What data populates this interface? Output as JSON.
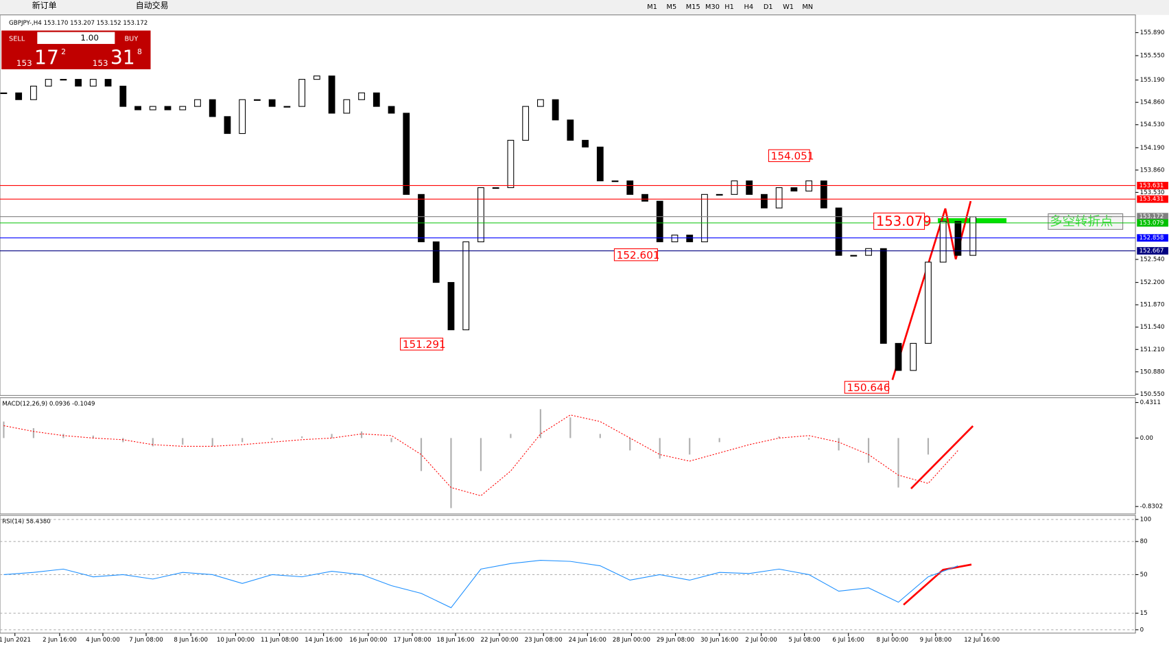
{
  "toolbar": {
    "buttons": [
      "新订单",
      "自动交易"
    ],
    "timeframes": [
      "M1",
      "M5",
      "M15",
      "M30",
      "H1",
      "H4",
      "D1",
      "W1",
      "MN"
    ]
  },
  "trade_panel": {
    "sell": "SELL",
    "lot": "1.00",
    "buy": "BUY",
    "sell_price": [
      "153",
      "17",
      "2"
    ],
    "buy_price": [
      "153",
      "31",
      "8"
    ]
  },
  "note": "多空转折点",
  "chart_data": [
    {
      "type": "candlestick",
      "title": "GBPJPY-,H4 153.170 153.207 153.152 153.172",
      "values": [
        155.0,
        154.9,
        155.1,
        155.2,
        155.2,
        155.1,
        155.2,
        155.1,
        154.8,
        154.75,
        154.8,
        154.75,
        154.8,
        154.9,
        154.65,
        154.4,
        154.9,
        154.9,
        154.8,
        154.8,
        155.2,
        155.25,
        154.7,
        154.9,
        155.0,
        154.8,
        154.7,
        153.5,
        152.8,
        152.2,
        151.5,
        152.8,
        153.6,
        153.6,
        154.3,
        154.8,
        154.9,
        154.6,
        154.3,
        154.2,
        153.7,
        153.7,
        153.5,
        153.4,
        152.8,
        152.9,
        152.8,
        153.5,
        153.5,
        153.7,
        153.5,
        153.3,
        153.6,
        153.55,
        153.7,
        153.3,
        152.6,
        152.6,
        152.7,
        151.3,
        150.9,
        151.3,
        152.5,
        153.1,
        152.6,
        153.17
      ],
      "xlim": [
        -0.25,
        75.9
      ],
      "ylim": [
        150.53,
        156.13
      ],
      "yticks": [
        {
          "value": 155.89,
          "label": "155.890"
        },
        {
          "value": 155.55,
          "label": "155.550"
        },
        {
          "value": 155.19,
          "label": "155.190"
        },
        {
          "value": 154.86,
          "label": "154.860"
        },
        {
          "value": 154.53,
          "label": "154.530"
        },
        {
          "value": 154.19,
          "label": "154.190"
        },
        {
          "value": 153.86,
          "label": "153.860"
        },
        {
          "value": 153.53,
          "label": "153.530"
        },
        {
          "value": 152.54,
          "label": "152.540"
        },
        {
          "value": 152.2,
          "label": "152.200"
        },
        {
          "value": 151.87,
          "label": "151.870"
        },
        {
          "value": 151.54,
          "label": "151.540"
        },
        {
          "value": 151.21,
          "label": "151.210"
        },
        {
          "value": 150.88,
          "label": "150.880"
        },
        {
          "value": 150.55,
          "label": "150.550"
        }
      ],
      "xticks": [
        {
          "value": 0.75,
          "label": "1 Jun 2021"
        },
        {
          "value": 3.75,
          "label": "2 Jun 16:00"
        },
        {
          "value": 6.65,
          "label": "4 Jun 00:00"
        },
        {
          "value": 9.55,
          "label": "7 Jun 08:00"
        },
        {
          "value": 12.55,
          "label": "8 Jun 16:00"
        },
        {
          "value": 15.55,
          "label": "10 Jun 00:00"
        },
        {
          "value": 18.5,
          "label": "11 Jun 08:00"
        },
        {
          "value": 21.45,
          "label": "14 Jun 16:00"
        },
        {
          "value": 24.45,
          "label": "16 Jun 00:00"
        },
        {
          "value": 27.4,
          "label": "17 Jun 08:00"
        },
        {
          "value": 30.3,
          "label": "18 Jun 16:00"
        },
        {
          "value": 33.25,
          "label": "22 Jun 00:00"
        },
        {
          "value": 36.2,
          "label": "23 Jun 08:00"
        },
        {
          "value": 39.15,
          "label": "24 Jun 16:00"
        },
        {
          "value": 42.1,
          "label": "28 Jun 00:00"
        },
        {
          "value": 45.05,
          "label": "29 Jun 08:00"
        },
        {
          "value": 48,
          "label": "30 Jun 16:00"
        },
        {
          "value": 50.8,
          "label": "2 Jul 00:00"
        },
        {
          "value": 53.7,
          "label": "5 Jul 08:00"
        },
        {
          "value": 56.65,
          "label": "6 Jul 16:00"
        },
        {
          "value": 59.6,
          "label": "8 Jul 00:00"
        },
        {
          "value": 62.5,
          "label": "9 Jul 08:00"
        },
        {
          "value": 65.6,
          "label": "12 Jul 16:00"
        }
      ],
      "levels": [
        {
          "value": 153.631,
          "color": "#ff0000"
        },
        {
          "value": 153.431,
          "color": "#ff0000"
        },
        {
          "value": 153.172,
          "color": "#808080"
        },
        {
          "value": 153.079,
          "color": "#00c000"
        },
        {
          "value": 152.858,
          "color": "#0000ff"
        },
        {
          "value": 152.667,
          "color": "#000080"
        }
      ],
      "annotations": [
        154.051,
        152.601,
        151.291,
        150.646,
        153.079
      ]
    },
    {
      "type": "combo",
      "title": "MACD(12,26,9) 0.0936 -0.1049",
      "xlim": [
        -0.125,
        37.95
      ],
      "ylim": [
        -0.92,
        0.48
      ],
      "yticks": [
        0.4311,
        {
          "value": 0,
          "label": "0.00"
        },
        -0.8302
      ],
      "series": [
        {
          "color": "#b0b0b0",
          "values": [
            0.2,
            0.12,
            0.05,
            0.03,
            -0.05,
            -0.1,
            -0.08,
            -0.1,
            -0.05,
            -0.02,
            0.02,
            0.05,
            0.08,
            -0.05,
            -0.4,
            -0.85,
            -0.4,
            0.05,
            0.35,
            0.25,
            0.05,
            -0.15,
            -0.25,
            -0.2,
            -0.05,
            0.0,
            0.02,
            -0.02,
            -0.15,
            -0.3,
            -0.6,
            -0.2,
            0.0
          ]
        },
        {
          "color": "#ff0000",
          "values": [
            0.15,
            0.08,
            0.03,
            0.0,
            -0.02,
            -0.08,
            -0.1,
            -0.1,
            -0.08,
            -0.05,
            -0.02,
            0.0,
            0.05,
            0.03,
            -0.2,
            -0.6,
            -0.7,
            -0.4,
            0.05,
            0.28,
            0.2,
            0.0,
            -0.2,
            -0.28,
            -0.18,
            -0.08,
            0.0,
            0.03,
            -0.05,
            -0.2,
            -0.45,
            -0.55,
            -0.15
          ]
        }
      ]
    },
    {
      "type": "line",
      "title": "RSI(14) 58.4380",
      "xlim": [
        -0.125,
        37.95
      ],
      "ylim": [
        -3,
        103
      ],
      "grid": true,
      "color": "#1e90ff",
      "yticks": [
        100,
        80,
        50,
        15,
        0
      ],
      "values": [
        50,
        52,
        55,
        48,
        50,
        46,
        52,
        50,
        42,
        50,
        48,
        53,
        50,
        40,
        33,
        20,
        55,
        60,
        63,
        62,
        58,
        45,
        50,
        45,
        52,
        51,
        55,
        50,
        35,
        38,
        25,
        48,
        58
      ]
    }
  ]
}
